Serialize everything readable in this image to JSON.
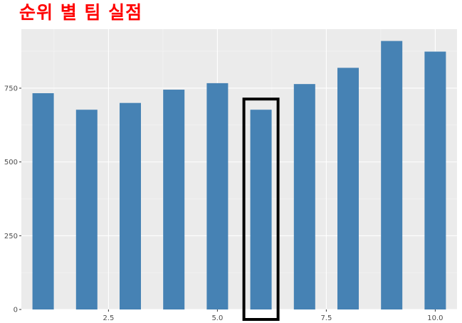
{
  "title": "순위 별 팀 실점",
  "colors": {
    "title": "#ff0000",
    "bar": "#4682b4",
    "panel": "#ebebeb",
    "grid_major": "#ffffff",
    "grid_minor": "#f5f5f5",
    "highlight": "#000000"
  },
  "chart_data": {
    "type": "bar",
    "title": "순위 별 팀 실점",
    "xlabel": "",
    "ylabel": "",
    "x": [
      1,
      2,
      3,
      4,
      5,
      6,
      7,
      8,
      9,
      10
    ],
    "values": [
      733,
      677,
      700,
      745,
      767,
      677,
      764,
      819,
      910,
      874
    ],
    "xlim": [
      0.5,
      10.5
    ],
    "ylim": [
      0,
      950
    ],
    "x_ticks": [
      2.5,
      5.0,
      7.5,
      10.0
    ],
    "x_tick_labels": [
      "2.5",
      "5.0",
      "7.5",
      "10.0"
    ],
    "y_ticks": [
      0,
      250,
      500,
      750
    ],
    "y_tick_labels": [
      "0",
      "250",
      "500",
      "750"
    ],
    "grid": true,
    "legend": "none",
    "highlighted_x": 6
  }
}
